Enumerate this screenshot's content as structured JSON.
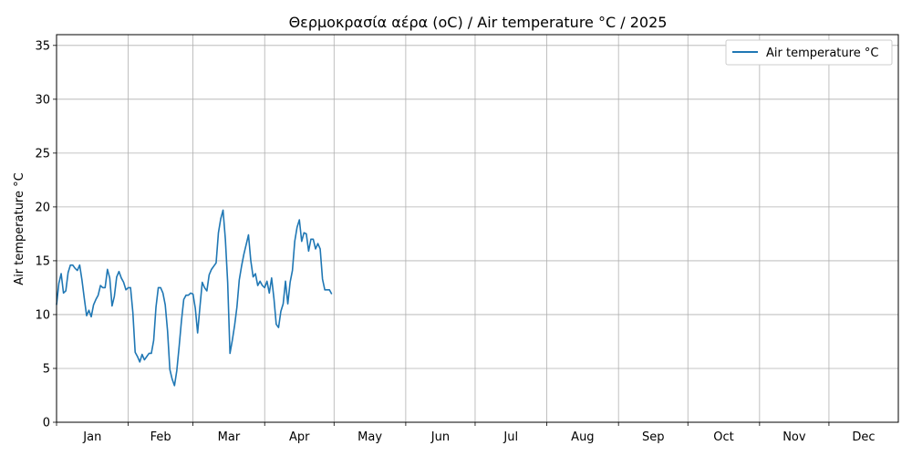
{
  "chart_data": {
    "type": "line",
    "title": "Θερμοκρασία αέρα (oC) / Air temperature °C / 2025",
    "xlabel": "",
    "ylabel": "Air temperature °C",
    "ylim": [
      0,
      36
    ],
    "xlim": [
      "2025-01-01",
      "2025-12-31"
    ],
    "yticks": [
      0,
      5,
      10,
      15,
      20,
      25,
      30,
      35
    ],
    "month_labels": [
      "Jan",
      "Feb",
      "Mar",
      "Apr",
      "May",
      "Jun",
      "Jul",
      "Aug",
      "Sep",
      "Oct",
      "Nov",
      "Dec"
    ],
    "month_starts": [
      "2025-01-01",
      "2025-02-01",
      "2025-03-01",
      "2025-04-01",
      "2025-05-01",
      "2025-06-01",
      "2025-07-01",
      "2025-08-01",
      "2025-09-01",
      "2025-10-01",
      "2025-11-01",
      "2025-12-01"
    ],
    "grid": true,
    "legend_position": "top-right",
    "series": [
      {
        "name": "Air temperature °C",
        "color": "#1f77b4",
        "x": [
          "2025-01-01",
          "2025-01-02",
          "2025-01-03",
          "2025-01-04",
          "2025-01-05",
          "2025-01-06",
          "2025-01-07",
          "2025-01-08",
          "2025-01-09",
          "2025-01-10",
          "2025-01-11",
          "2025-01-12",
          "2025-01-13",
          "2025-01-14",
          "2025-01-15",
          "2025-01-16",
          "2025-01-17",
          "2025-01-18",
          "2025-01-19",
          "2025-01-20",
          "2025-01-21",
          "2025-01-22",
          "2025-01-23",
          "2025-01-24",
          "2025-01-25",
          "2025-01-26",
          "2025-01-27",
          "2025-01-28",
          "2025-01-29",
          "2025-01-30",
          "2025-01-31",
          "2025-02-01",
          "2025-02-02",
          "2025-02-03",
          "2025-02-04",
          "2025-02-05",
          "2025-02-06",
          "2025-02-07",
          "2025-02-08",
          "2025-02-09",
          "2025-02-10",
          "2025-02-11",
          "2025-02-12",
          "2025-02-13",
          "2025-02-14",
          "2025-02-15",
          "2025-02-16",
          "2025-02-17",
          "2025-02-18",
          "2025-02-19",
          "2025-02-20",
          "2025-02-21",
          "2025-02-22",
          "2025-02-23",
          "2025-02-24",
          "2025-02-25",
          "2025-02-26",
          "2025-02-27",
          "2025-02-28",
          "2025-03-01",
          "2025-03-02",
          "2025-03-03",
          "2025-03-04",
          "2025-03-05",
          "2025-03-06",
          "2025-03-07",
          "2025-03-08",
          "2025-03-09",
          "2025-03-10",
          "2025-03-11",
          "2025-03-12",
          "2025-03-13",
          "2025-03-14",
          "2025-03-15",
          "2025-03-16",
          "2025-03-17",
          "2025-03-18",
          "2025-03-19",
          "2025-03-20",
          "2025-03-21",
          "2025-03-22",
          "2025-03-23",
          "2025-03-24",
          "2025-03-25",
          "2025-03-26",
          "2025-03-27",
          "2025-03-28",
          "2025-03-29",
          "2025-03-30",
          "2025-03-31",
          "2025-04-01",
          "2025-04-02",
          "2025-04-03",
          "2025-04-04",
          "2025-04-05",
          "2025-04-06",
          "2025-04-07",
          "2025-04-08",
          "2025-04-09",
          "2025-04-10",
          "2025-04-11",
          "2025-04-12",
          "2025-04-13",
          "2025-04-14",
          "2025-04-15",
          "2025-04-16",
          "2025-04-17",
          "2025-04-18",
          "2025-04-19",
          "2025-04-20",
          "2025-04-21",
          "2025-04-22",
          "2025-04-23",
          "2025-04-24",
          "2025-04-25",
          "2025-04-26",
          "2025-04-27",
          "2025-04-28",
          "2025-04-29",
          "2025-04-30"
        ],
        "y": [
          10.9,
          12.9,
          13.8,
          12.0,
          12.2,
          13.9,
          14.6,
          14.6,
          14.3,
          14.1,
          14.6,
          13.2,
          11.5,
          9.9,
          10.4,
          9.8,
          10.9,
          11.4,
          11.8,
          12.7,
          12.5,
          12.5,
          14.2,
          13.4,
          10.8,
          11.7,
          13.5,
          14.0,
          13.4,
          13.0,
          12.3,
          12.5,
          12.5,
          10.2,
          6.5,
          6.1,
          5.6,
          6.3,
          5.8,
          6.1,
          6.4,
          6.4,
          7.6,
          10.7,
          12.5,
          12.5,
          12.0,
          10.9,
          8.5,
          4.9,
          4.0,
          3.4,
          4.8,
          7.0,
          9.4,
          11.4,
          11.8,
          11.8,
          12.0,
          11.9,
          10.6,
          8.3,
          10.7,
          13.0,
          12.5,
          12.2,
          13.7,
          14.2,
          14.5,
          14.8,
          17.6,
          18.9,
          19.7,
          17.0,
          13.0,
          6.4,
          7.6,
          9.0,
          10.7,
          13.2,
          14.5,
          15.6,
          16.5,
          17.4,
          15.0,
          13.5,
          13.8,
          12.7,
          13.1,
          12.7,
          12.5,
          13.1,
          12.0,
          13.4,
          11.5,
          9.1,
          8.8,
          10.3,
          11.0,
          13.1,
          11.0,
          13.0,
          14.1,
          16.8,
          18.1,
          18.8,
          16.8,
          17.6,
          17.5,
          15.9,
          17.0,
          17.0,
          16.1,
          16.6,
          16.1,
          13.3,
          12.3,
          12.3,
          12.3,
          11.9
        ]
      }
    ]
  }
}
